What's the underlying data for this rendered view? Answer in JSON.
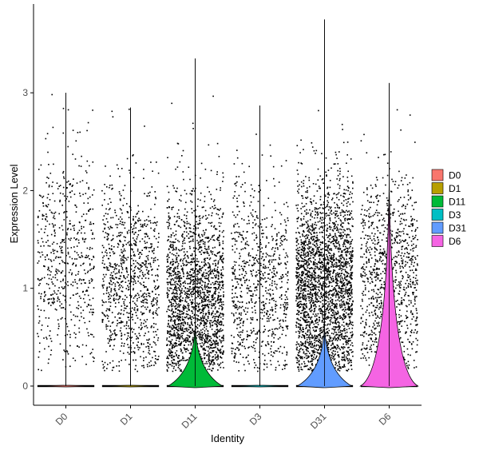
{
  "chart_data": {
    "type": "violin",
    "title": "",
    "xlabel": "Identity",
    "ylabel": "Expression Level",
    "ylim": [
      -0.2,
      3.85
    ],
    "yticks": [
      0,
      1,
      2,
      3
    ],
    "categories": [
      "D0",
      "D1",
      "D11",
      "D3",
      "D31",
      "D6"
    ],
    "series": [
      {
        "name": "D0",
        "color": "#F8766D",
        "n_nonzero": 600,
        "mean_nonzero": 1.3,
        "median": 0,
        "max": 3.0
      },
      {
        "name": "D1",
        "color": "#B79F00",
        "n_nonzero": 950,
        "mean_nonzero": 1.1,
        "median": 0,
        "max": 2.85
      },
      {
        "name": "D11",
        "color": "#00BA38",
        "n_nonzero": 2000,
        "mean_nonzero": 0.9,
        "median": 0,
        "max": 3.35
      },
      {
        "name": "D3",
        "color": "#00BFC4",
        "n_nonzero": 800,
        "mean_nonzero": 1.0,
        "median": 0,
        "max": 2.87
      },
      {
        "name": "D31",
        "color": "#619CFF",
        "n_nonzero": 2600,
        "mean_nonzero": 1.0,
        "median": 0,
        "max": 3.75
      },
      {
        "name": "D6",
        "color": "#F564E3",
        "n_nonzero": 1000,
        "mean_nonzero": 1.1,
        "median": 0,
        "max": 3.1
      }
    ],
    "legend_position": "right",
    "grid": false
  }
}
